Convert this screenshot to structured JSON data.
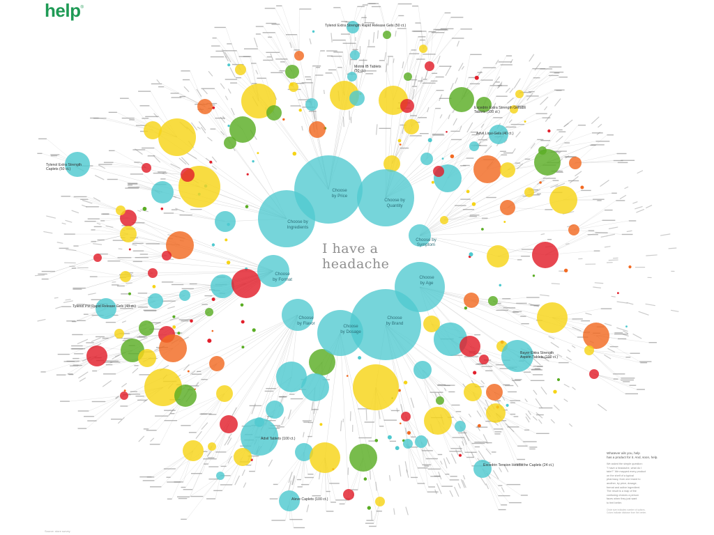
{
  "brand": {
    "name": "help",
    "mark": "®"
  },
  "center_title": {
    "line1": "I have a",
    "line2": "headache"
  },
  "palette": {
    "cyan": "#4fc9cf",
    "yellow": "#f6d417",
    "green": "#5aad24",
    "orange": "#f26a22",
    "red": "#e21f2b",
    "line": "#9a9a9a"
  },
  "categories": [
    {
      "id": "price",
      "label_lines": [
        "Choose",
        "by Price"
      ]
    },
    {
      "id": "quantity",
      "label_lines": [
        "Choose by",
        "Quantity"
      ]
    },
    {
      "id": "ingredients",
      "label_lines": [
        "Choose by",
        "Ingredients"
      ]
    },
    {
      "id": "symptom",
      "label_lines": [
        "Choose by",
        "Symptom"
      ]
    },
    {
      "id": "format",
      "label_lines": [
        "Choose",
        "by Format"
      ]
    },
    {
      "id": "age",
      "label_lines": [
        "Choose",
        "by Age"
      ]
    },
    {
      "id": "flavor",
      "label_lines": [
        "Choose",
        "by Flavor"
      ]
    },
    {
      "id": "dosage",
      "label_lines": [
        "Choose",
        "by Dosage"
      ]
    },
    {
      "id": "brand",
      "label_lines": [
        "Choose",
        "by Brand"
      ]
    }
  ],
  "callouts": [
    {
      "id": "c1",
      "lines": [
        "Tylenol Extra Strength Rapid Release Gels (50 ct.)"
      ]
    },
    {
      "id": "c2",
      "lines": [
        "Tylenol Extra Strength",
        "Caplets (50 ct.)"
      ]
    },
    {
      "id": "c3",
      "lines": [
        "Tylenol PM Rapid Release Gels (48 ct.)"
      ]
    },
    {
      "id": "c4",
      "lines": [
        "Excedrin Extra Strength Geltabs",
        "Tablets (100 ct.)"
      ]
    },
    {
      "id": "c5",
      "lines": [
        "Advil Liqui-Gels (40 ct.)"
      ]
    },
    {
      "id": "c6",
      "lines": [
        "Bayer Extra Strength",
        "Aspirin Tablets (100 ct.)"
      ]
    },
    {
      "id": "c7",
      "lines": [
        "Excedrin Tension Headache Caplets (24 ct.)"
      ]
    },
    {
      "id": "c8",
      "lines": [
        "Advil Tablets (100 ct.)"
      ]
    },
    {
      "id": "c9",
      "lines": [
        "Aleve Caplets (100 ct.)"
      ]
    },
    {
      "id": "c10",
      "lines": [
        "Motrin IB Tablets",
        "(50 ct.)"
      ]
    }
  ],
  "legend": {
    "head": [
      "Whatever ails you, help",
      "has a product for it. And, soon, help."
    ],
    "body": [
      "We asked the simple question:",
      "\"I have a headache, what do I",
      "take?\" We mapped every product",
      "on the shelf of a typical",
      "pharmacy, from one brand to",
      "another, by price, dosage,",
      "format and active ingredient.",
      "The result is a map of the",
      "confusing choices a person",
      "faces when they just want",
      "to feel better."
    ],
    "fine": [
      "Circle size indicates number of options.",
      "Colors indicate distance from the center."
    ]
  },
  "credit": "Source: store survey"
}
